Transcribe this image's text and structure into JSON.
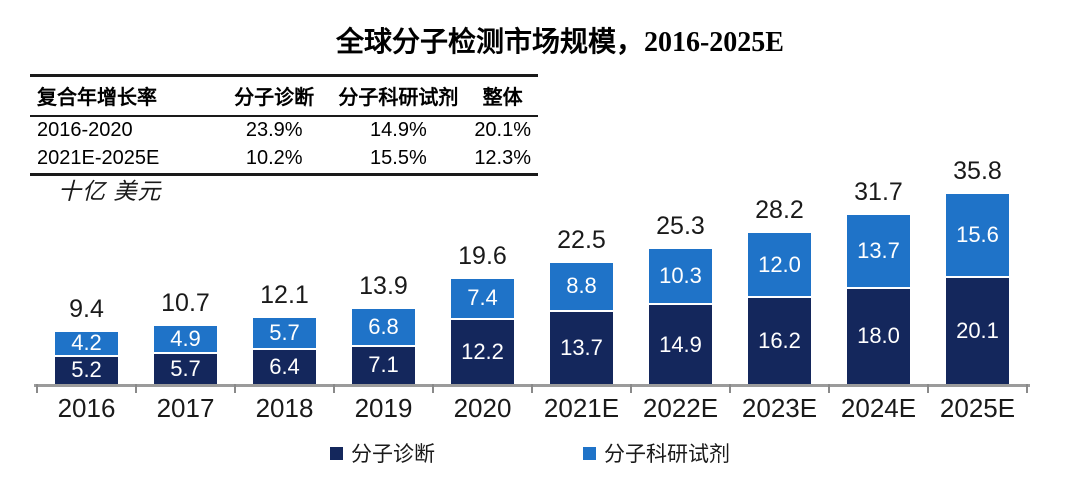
{
  "title": "全球分子检测市场规模，2016-2025E",
  "cagr_table": {
    "headers": [
      "复合年增长率",
      "分子诊断",
      "分子科研试剂",
      "整体"
    ],
    "rows": [
      [
        "2016-2020",
        "23.9%",
        "14.9%",
        "20.1%"
      ],
      [
        "2021E-2025E",
        "10.2%",
        "15.5%",
        "12.3%"
      ]
    ]
  },
  "unit_label": "十亿 美元",
  "colors": {
    "molecular_diagnostics": "#14275C",
    "molecular_research_reagents": "#1F73C8",
    "axis": "#9B9B9B"
  },
  "legend": [
    {
      "label": "分子诊断",
      "color": "#14275C"
    },
    {
      "label": "分子科研试剂",
      "color": "#1F73C8"
    }
  ],
  "chart_data": {
    "type": "bar",
    "stacked": true,
    "title": "全球分子检测市场规模，2016-2025E",
    "ylabel": "十亿 美元",
    "ylim": [
      0,
      40
    ],
    "grid": false,
    "legend_position": "bottom",
    "categories": [
      "2016",
      "2017",
      "2018",
      "2019",
      "2020",
      "2021E",
      "2022E",
      "2023E",
      "2024E",
      "2025E"
    ],
    "series": [
      {
        "name": "分子诊断",
        "color": "#14275C",
        "values": [
          5.2,
          5.7,
          6.4,
          7.1,
          12.2,
          13.7,
          14.9,
          16.2,
          18.0,
          20.1
        ]
      },
      {
        "name": "分子科研试剂",
        "color": "#1F73C8",
        "values": [
          4.2,
          4.9,
          5.7,
          6.8,
          7.4,
          8.8,
          10.3,
          12.0,
          13.7,
          15.6
        ]
      }
    ],
    "totals": [
      9.4,
      10.7,
      12.1,
      13.9,
      19.6,
      22.5,
      25.3,
      28.2,
      31.7,
      35.8
    ]
  }
}
